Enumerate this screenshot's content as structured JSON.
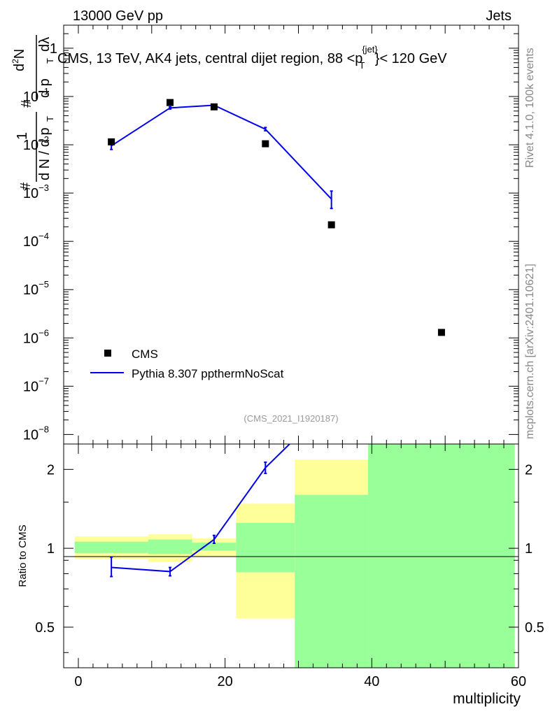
{
  "header": {
    "left": "13000 GeV pp",
    "right": "Jets"
  },
  "side_labels": {
    "rivet": "Rivet 4.1.0,  100k events",
    "mcplots": "mcplots.cern.ch [arXiv:2401.10621]"
  },
  "ratio_ylabel": "Ratio to CMS",
  "colors": {
    "mc": "#0000ee",
    "data": "#000000",
    "band_green": "#99ff99",
    "band_yellow": "#ffff99"
  },
  "chart_data": [
    {
      "type": "scatter",
      "panel": "main",
      "title": "CMS, 13 TeV, AK4 jets, central dijet region, 88 <p_T^{jet}< 120 GeV",
      "title_parts": {
        "pre": "CMS, 13 TeV, AK4 jets, central dijet region, 88 <p",
        "sub": "T",
        "sup": "{jet}",
        "post": "}< 120 GeV"
      },
      "ylabel": "1/(dN/dp_T) d²N/(dp_T dλ)",
      "ylabel_parts": {
        "one": "1",
        "dN": "d N / d p",
        "T": "T",
        "num": "d²N",
        "den": "d p",
        "dl": "dλ",
        "hash": "#",
        "two": "2"
      },
      "yscale": "log",
      "ylim": [
        1e-08,
        3
      ],
      "xlim": [
        -2,
        60
      ],
      "yticks": [
        {
          "v": 1e-08,
          "label": "10^-8",
          "mant": "10",
          "exp": "−8"
        },
        {
          "v": 1e-07,
          "label": "10^-7",
          "mant": "10",
          "exp": "−7"
        },
        {
          "v": 1e-06,
          "label": "10^-6",
          "mant": "10",
          "exp": "−6"
        },
        {
          "v": 1e-05,
          "label": "10^-5",
          "mant": "10",
          "exp": "−5"
        },
        {
          "v": 0.0001,
          "label": "10^-4",
          "mant": "10",
          "exp": "−4"
        },
        {
          "v": 0.001,
          "label": "10^-3",
          "mant": "10",
          "exp": "−3"
        },
        {
          "v": 0.01,
          "label": "10^-2",
          "mant": "10",
          "exp": "−2"
        },
        {
          "v": 0.1,
          "label": "10^-1",
          "mant": "10",
          "exp": "−1"
        },
        {
          "v": 1,
          "label": "1",
          "mant": "1",
          "exp": ""
        }
      ],
      "series": [
        {
          "name": "CMS",
          "kind": "points",
          "x": [
            4.5,
            12.5,
            18.5,
            25.5,
            34.5,
            49.5
          ],
          "y": [
            0.0115,
            0.075,
            0.061,
            0.0105,
            0.00022,
            1.3e-06
          ]
        },
        {
          "name": "Pythia 8.307 ppthermNoScat",
          "kind": "line",
          "x": [
            4.5,
            12.5,
            18.5,
            25.5,
            34.5
          ],
          "y": [
            0.0095,
            0.058,
            0.066,
            0.021,
            0.00075
          ],
          "yerr_lo": [
            0.008,
            0.055,
            0.063,
            0.0195,
            0.00048
          ],
          "yerr_hi": [
            0.0112,
            0.061,
            0.069,
            0.0228,
            0.0011
          ]
        }
      ],
      "watermark": "(CMS_2021_I1920187)"
    },
    {
      "type": "line",
      "panel": "ratio",
      "xlabel": "multiplicity",
      "ylabel": "Ratio to CMS",
      "yscale": "log",
      "ylim": [
        0.35,
        2.5
      ],
      "xlim": [
        -2,
        60
      ],
      "xticks": [
        0,
        20,
        40,
        60
      ],
      "xticks_labels": [
        "0",
        "20",
        "40",
        "60"
      ],
      "yticks": [
        0.5,
        1,
        2
      ],
      "yticks_labels": [
        "0.5",
        "1",
        "2"
      ],
      "bands": [
        {
          "x0": -0.5,
          "x1": 9.5,
          "green": [
            0.96,
            1.06
          ],
          "yellow": [
            0.91,
            1.11
          ]
        },
        {
          "x0": 9.5,
          "x1": 15.5,
          "green": [
            0.95,
            1.08
          ],
          "yellow": [
            0.89,
            1.13
          ]
        },
        {
          "x0": 15.5,
          "x1": 21.5,
          "green": [
            0.98,
            1.05
          ],
          "yellow": [
            0.93,
            1.09
          ]
        },
        {
          "x0": 21.5,
          "x1": 29.5,
          "green": [
            0.81,
            1.25
          ],
          "yellow": [
            0.54,
            1.48
          ]
        },
        {
          "x0": 29.5,
          "x1": 39.5,
          "green": [
            0.34,
            1.6
          ],
          "yellow": [
            0.3,
            2.18
          ]
        },
        {
          "x0": 39.5,
          "x1": 59.5,
          "green": [
            0.3,
            2.6
          ],
          "yellow": [
            0.3,
            2.6
          ]
        }
      ],
      "series": [
        {
          "name": "Pythia 8.307 ppthermNoScat",
          "x": [
            4.5,
            12.5,
            18.5,
            25.5,
            28.8
          ],
          "y": [
            0.845,
            0.815,
            1.08,
            2.03,
            2.5
          ],
          "yerr_lo": [
            0.78,
            0.785,
            1.045,
            1.93,
            null
          ],
          "yerr_hi": [
            0.925,
            0.845,
            1.12,
            2.13,
            null
          ]
        }
      ]
    }
  ]
}
